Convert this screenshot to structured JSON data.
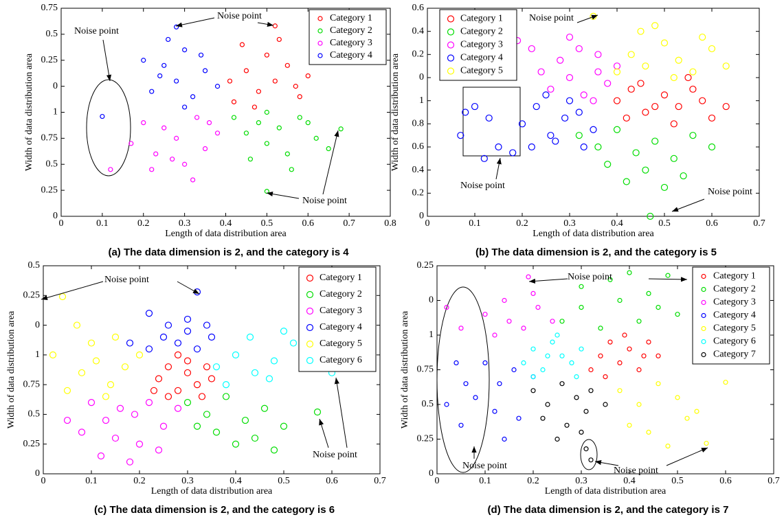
{
  "chart_data": [
    {
      "type": "scatter",
      "caption": "(a) The data dimension is 2, and the category is 4",
      "xlabel": "Length of data distribution area",
      "ylabel": "Width of data distribution area",
      "xlim": [
        0,
        0.8
      ],
      "ylim": [
        0,
        2
      ],
      "xticks": [
        0,
        0.1,
        0.2,
        0.3,
        0.4,
        0.5,
        0.6,
        0.7,
        0.8
      ],
      "yticks": [
        0,
        0.25,
        0.5,
        0.75,
        1,
        {
          "value": 1.25,
          "label": "0"
        },
        {
          "value": 1.5,
          "label": "0.25"
        },
        {
          "value": 1.75,
          "label": "0.5"
        },
        {
          "value": 2,
          "label": "0.75"
        }
      ],
      "legend": "upper right",
      "annotations": [
        "Noise point",
        "Noise point",
        "Noise point"
      ],
      "series": [
        {
          "name": "Category 1",
          "color": "#ff0000",
          "x": [
            0.42,
            0.45,
            0.48,
            0.5,
            0.52,
            0.55,
            0.58,
            0.6,
            0.44,
            0.47,
            0.53,
            0.57,
            0.62,
            0.41,
            0.52
          ],
          "y": [
            1.1,
            1.4,
            1.2,
            1.55,
            1.3,
            1.45,
            1.15,
            1.35,
            1.65,
            1.05,
            1.7,
            1.25,
            1.5,
            1.3,
            1.83
          ]
        },
        {
          "name": "Category 2",
          "color": "#00dd00",
          "x": [
            0.42,
            0.45,
            0.48,
            0.5,
            0.53,
            0.55,
            0.58,
            0.62,
            0.46,
            0.5,
            0.56,
            0.6,
            0.65,
            0.68,
            0.5
          ],
          "y": [
            0.95,
            0.8,
            0.9,
            0.7,
            0.85,
            0.6,
            0.95,
            0.75,
            0.55,
            1.0,
            0.45,
            0.9,
            0.65,
            0.84,
            0.24
          ]
        },
        {
          "name": "Category 3",
          "color": "#ff00ff",
          "x": [
            0.17,
            0.2,
            0.23,
            0.25,
            0.28,
            0.3,
            0.33,
            0.35,
            0.38,
            0.22,
            0.27,
            0.32,
            0.36,
            0.12
          ],
          "y": [
            0.7,
            0.9,
            0.6,
            0.85,
            0.75,
            0.5,
            0.95,
            0.65,
            0.8,
            0.45,
            0.55,
            0.35,
            0.9,
            0.45
          ]
        },
        {
          "name": "Category 4",
          "color": "#0000ff",
          "x": [
            0.22,
            0.25,
            0.28,
            0.3,
            0.32,
            0.35,
            0.38,
            0.26,
            0.3,
            0.34,
            0.2,
            0.24,
            0.28,
            0.1
          ],
          "y": [
            1.2,
            1.45,
            1.3,
            1.6,
            1.15,
            1.4,
            1.25,
            1.7,
            1.05,
            1.55,
            1.5,
            1.35,
            1.82,
            0.96
          ]
        }
      ]
    },
    {
      "type": "scatter",
      "caption": "(b) The data dimension is 2, and the category is 5",
      "xlabel": "Length of data distribution area",
      "ylabel": "Width of data distribution area",
      "xlim": [
        0,
        0.7
      ],
      "ylim": [
        0,
        1.8
      ],
      "xticks": [
        0,
        0.1,
        0.2,
        0.3,
        0.4,
        0.5,
        0.6,
        0.7
      ],
      "yticks": [
        0,
        0.2,
        0.4,
        0.6,
        0.8,
        1,
        {
          "value": 1.2,
          "label": "0"
        },
        {
          "value": 1.4,
          "label": "0.2"
        },
        {
          "value": 1.6,
          "label": "0.4"
        },
        {
          "value": 1.8,
          "label": "0.6"
        }
      ],
      "legend": "upper left",
      "annotations": [
        "Noise point",
        "Noise point",
        "Noise point"
      ],
      "series": [
        {
          "name": "Category 1",
          "color": "#ff0000",
          "x": [
            0.4,
            0.43,
            0.46,
            0.5,
            0.53,
            0.56,
            0.6,
            0.63,
            0.45,
            0.52,
            0.58,
            0.42,
            0.55,
            0.48
          ],
          "y": [
            1.0,
            1.1,
            0.9,
            1.05,
            0.95,
            1.1,
            0.85,
            0.95,
            1.15,
            0.8,
            1.0,
            0.85,
            1.2,
            0.95
          ]
        },
        {
          "name": "Category 2",
          "color": "#00dd00",
          "x": [
            0.32,
            0.36,
            0.4,
            0.44,
            0.48,
            0.52,
            0.56,
            0.6,
            0.38,
            0.46,
            0.54,
            0.42,
            0.5,
            0.47
          ],
          "y": [
            0.7,
            0.6,
            0.75,
            0.55,
            0.65,
            0.5,
            0.7,
            0.6,
            0.45,
            0.4,
            0.35,
            0.3,
            0.25,
            0.0
          ]
        },
        {
          "name": "Category 3",
          "color": "#ff00ff",
          "x": [
            0.26,
            0.3,
            0.33,
            0.36,
            0.38,
            0.4,
            0.28,
            0.32,
            0.35,
            0.24,
            0.22,
            0.3,
            0.36,
            0.19
          ],
          "y": [
            1.1,
            1.2,
            1.05,
            1.25,
            1.15,
            1.3,
            1.35,
            1.45,
            1.0,
            1.25,
            1.45,
            1.55,
            1.4,
            1.52
          ]
        },
        {
          "name": "Category 4",
          "color": "#0000ff",
          "x": [
            0.2,
            0.23,
            0.26,
            0.29,
            0.32,
            0.35,
            0.22,
            0.27,
            0.3,
            0.18,
            0.25,
            0.33,
            0.07,
            0.1,
            0.13,
            0.15,
            0.08,
            0.12
          ],
          "y": [
            0.8,
            0.95,
            0.7,
            0.85,
            0.9,
            0.75,
            0.6,
            0.65,
            1.0,
            0.55,
            1.05,
            0.6,
            0.7,
            0.95,
            0.85,
            0.6,
            0.9,
            0.5
          ]
        },
        {
          "name": "Category 5",
          "color": "#ffff00",
          "x": [
            0.4,
            0.43,
            0.46,
            0.5,
            0.53,
            0.56,
            0.6,
            0.63,
            0.45,
            0.52,
            0.58,
            0.48,
            0.35
          ],
          "y": [
            1.25,
            1.4,
            1.3,
            1.5,
            1.35,
            1.25,
            1.45,
            1.3,
            1.6,
            1.2,
            1.55,
            1.65,
            1.73
          ]
        }
      ]
    },
    {
      "type": "scatter",
      "caption": "(c) The data dimension is 2, and the category is 6",
      "xlabel": "Length of data distribution area",
      "ylabel": "Width of data distribution area",
      "xlim": [
        0,
        0.7
      ],
      "ylim": [
        0,
        1.75
      ],
      "xticks": [
        0,
        0.1,
        0.2,
        0.3,
        0.4,
        0.5,
        0.6,
        0.7
      ],
      "yticks": [
        0,
        0.25,
        0.5,
        0.75,
        1,
        {
          "value": 1.25,
          "label": "0"
        },
        {
          "value": 1.5,
          "label": "0.25"
        },
        {
          "value": 1.75,
          "label": "0.5"
        }
      ],
      "legend": "upper right",
      "annotations": [
        "Noise point",
        "Noise point"
      ],
      "series": [
        {
          "name": "Category 1",
          "color": "#ff0000",
          "x": [
            0.24,
            0.26,
            0.28,
            0.3,
            0.32,
            0.34,
            0.26,
            0.3,
            0.33,
            0.28,
            0.23,
            0.35
          ],
          "y": [
            0.8,
            0.9,
            0.7,
            0.85,
            0.75,
            0.9,
            0.65,
            0.95,
            0.65,
            1.0,
            0.7,
            0.8
          ]
        },
        {
          "name": "Category 2",
          "color": "#00dd00",
          "x": [
            0.3,
            0.34,
            0.38,
            0.42,
            0.46,
            0.5,
            0.36,
            0.4,
            0.44,
            0.48,
            0.32,
            0.57
          ],
          "y": [
            0.6,
            0.5,
            0.65,
            0.45,
            0.55,
            0.4,
            0.35,
            0.25,
            0.3,
            0.2,
            0.4,
            0.52
          ]
        },
        {
          "name": "Category 3",
          "color": "#ff00ff",
          "x": [
            0.1,
            0.13,
            0.16,
            0.19,
            0.22,
            0.25,
            0.28,
            0.15,
            0.2,
            0.24,
            0.08,
            0.05,
            0.12,
            0.18
          ],
          "y": [
            0.6,
            0.45,
            0.55,
            0.5,
            0.6,
            0.4,
            0.55,
            0.3,
            0.25,
            0.2,
            0.35,
            0.45,
            0.15,
            0.1
          ]
        },
        {
          "name": "Category 4",
          "color": "#0000ff",
          "x": [
            0.22,
            0.25,
            0.28,
            0.3,
            0.32,
            0.35,
            0.26,
            0.3,
            0.34,
            0.18,
            0.22,
            0.32
          ],
          "y": [
            1.05,
            1.15,
            1.1,
            1.2,
            1.05,
            1.15,
            1.25,
            1.3,
            1.25,
            1.1,
            1.35,
            1.53
          ]
        },
        {
          "name": "Category 5",
          "color": "#ffff00",
          "x": [
            0.05,
            0.08,
            0.11,
            0.14,
            0.17,
            0.2,
            0.1,
            0.15,
            0.13,
            0.02,
            0.07,
            0.04
          ],
          "y": [
            0.7,
            0.85,
            0.95,
            0.75,
            0.9,
            1.0,
            1.1,
            1.15,
            0.65,
            1.0,
            1.25,
            1.49
          ]
        },
        {
          "name": "Category 6",
          "color": "#00ffff",
          "x": [
            0.36,
            0.4,
            0.44,
            0.48,
            0.52,
            0.38,
            0.43,
            0.47,
            0.55,
            0.5,
            0.6
          ],
          "y": [
            0.9,
            1.0,
            0.85,
            0.95,
            1.1,
            0.75,
            1.15,
            0.8,
            0.95,
            1.2,
            0.85
          ]
        }
      ]
    },
    {
      "type": "scatter",
      "caption": "(d) The data dimension is 2, and the category is 7",
      "xlabel": "Length of data distribution area",
      "ylabel": "Width of data distribution area",
      "xlim": [
        0,
        0.7
      ],
      "ylim": [
        0,
        1.5
      ],
      "xticks": [
        0,
        0.1,
        0.2,
        0.3,
        0.4,
        0.5,
        0.6,
        0.7
      ],
      "yticks": [
        0,
        0.25,
        0.5,
        0.75,
        1,
        {
          "value": 1.25,
          "label": "0"
        },
        {
          "value": 1.5,
          "label": "0.25"
        }
      ],
      "legend": "upper right",
      "annotations": [
        "Noise point",
        "Noise point",
        "Noise point"
      ],
      "series": [
        {
          "name": "Category 1",
          "color": "#ff0000",
          "x": [
            0.32,
            0.34,
            0.36,
            0.38,
            0.4,
            0.42,
            0.44,
            0.35,
            0.39,
            0.43,
            0.46
          ],
          "y": [
            0.75,
            0.85,
            0.95,
            0.8,
            0.9,
            0.75,
            0.95,
            0.7,
            1.0,
            0.85,
            0.85
          ]
        },
        {
          "name": "Category 2",
          "color": "#00dd00",
          "x": [
            0.26,
            0.3,
            0.34,
            0.38,
            0.42,
            0.46,
            0.3,
            0.36,
            0.44,
            0.5,
            0.4,
            0.48
          ],
          "y": [
            1.1,
            1.2,
            1.05,
            1.25,
            1.1,
            1.2,
            1.35,
            1.4,
            1.3,
            1.15,
            1.45,
            1.43
          ]
        },
        {
          "name": "Category 3",
          "color": "#ff00ff",
          "x": [
            0.12,
            0.15,
            0.18,
            0.21,
            0.24,
            0.14,
            0.2,
            0.1,
            0.02,
            0.05,
            0.19
          ],
          "y": [
            1.0,
            1.1,
            1.05,
            1.2,
            1.1,
            1.25,
            1.3,
            1.15,
            1.2,
            1.05,
            1.42
          ]
        },
        {
          "name": "Category 4",
          "color": "#0000ff",
          "x": [
            0.1,
            0.13,
            0.16,
            0.2,
            0.12,
            0.17,
            0.08,
            0.14,
            0.02,
            0.04,
            0.06,
            0.05
          ],
          "y": [
            0.8,
            0.65,
            0.75,
            0.7,
            0.45,
            0.4,
            0.55,
            0.25,
            0.5,
            0.8,
            0.65,
            0.35
          ]
        },
        {
          "name": "Category 5",
          "color": "#ffff00",
          "x": [
            0.38,
            0.42,
            0.46,
            0.5,
            0.54,
            0.4,
            0.44,
            0.48,
            0.52,
            0.56,
            0.6
          ],
          "y": [
            0.6,
            0.5,
            0.65,
            0.55,
            0.45,
            0.35,
            0.3,
            0.2,
            0.4,
            0.22,
            0.66
          ]
        },
        {
          "name": "Category 6",
          "color": "#00ffff",
          "x": [
            0.18,
            0.2,
            0.22,
            0.24,
            0.26,
            0.28,
            0.3,
            0.2,
            0.25,
            0.29,
            0.23
          ],
          "y": [
            0.8,
            0.9,
            0.75,
            0.95,
            0.85,
            0.8,
            0.9,
            0.7,
            1.0,
            0.7,
            0.85
          ]
        },
        {
          "name": "Category 7",
          "color": "#000000",
          "x": [
            0.2,
            0.23,
            0.26,
            0.29,
            0.32,
            0.35,
            0.22,
            0.27,
            0.31,
            0.25,
            0.3,
            0.32,
            0.31
          ],
          "y": [
            0.6,
            0.5,
            0.65,
            0.55,
            0.6,
            0.5,
            0.4,
            0.35,
            0.45,
            0.25,
            0.3,
            0.1,
            0.18
          ]
        }
      ]
    }
  ]
}
